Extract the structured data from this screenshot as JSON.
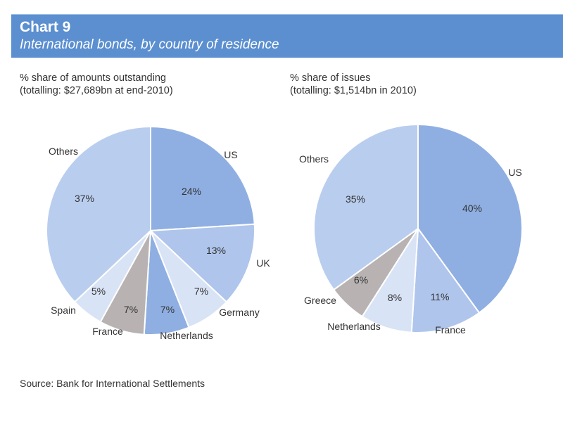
{
  "header": {
    "title": "Chart 9",
    "subtitle": "International bonds, by country of residence"
  },
  "left_caption": {
    "line1": "% share of amounts outstanding",
    "line2": "(totalling: $27,689bn at end-2010)"
  },
  "right_caption": {
    "line1": "% share of issues",
    "line2": "(totalling: $1,514bn in 2010)"
  },
  "source": "Source: Bank for International Settlements",
  "colors": {
    "header_bg": "#5b8fd0",
    "blue_dark": "#8fafe2",
    "blue_mid": "#afc5ec",
    "blue_light": "#d9e3f6",
    "grey": "#b8b3b2",
    "others": "#b9cdee"
  },
  "chart_data": [
    {
      "type": "pie",
      "categories": [
        "US",
        "UK",
        "Germany",
        "Netherlands",
        "France",
        "Spain",
        "Others"
      ],
      "values": [
        24,
        13,
        7,
        7,
        7,
        5,
        37
      ],
      "value_labels": [
        "24%",
        "13%",
        "7%",
        "7%",
        "7%",
        "5%",
        "37%"
      ],
      "colors": [
        "#8fafe2",
        "#afc5ec",
        "#d9e3f6",
        "#8fafe2",
        "#b8b3b2",
        "#d9e3f6",
        "#b9cdee"
      ]
    },
    {
      "type": "pie",
      "categories": [
        "US",
        "France",
        "Netherlands",
        "Greece",
        "Others"
      ],
      "values": [
        40,
        11,
        8,
        6,
        35
      ],
      "value_labels": [
        "40%",
        "11%",
        "8%",
        "6%",
        "35%"
      ],
      "colors": [
        "#8fafe2",
        "#afc5ec",
        "#d9e3f6",
        "#b8b3b2",
        "#b9cdee"
      ]
    }
  ]
}
